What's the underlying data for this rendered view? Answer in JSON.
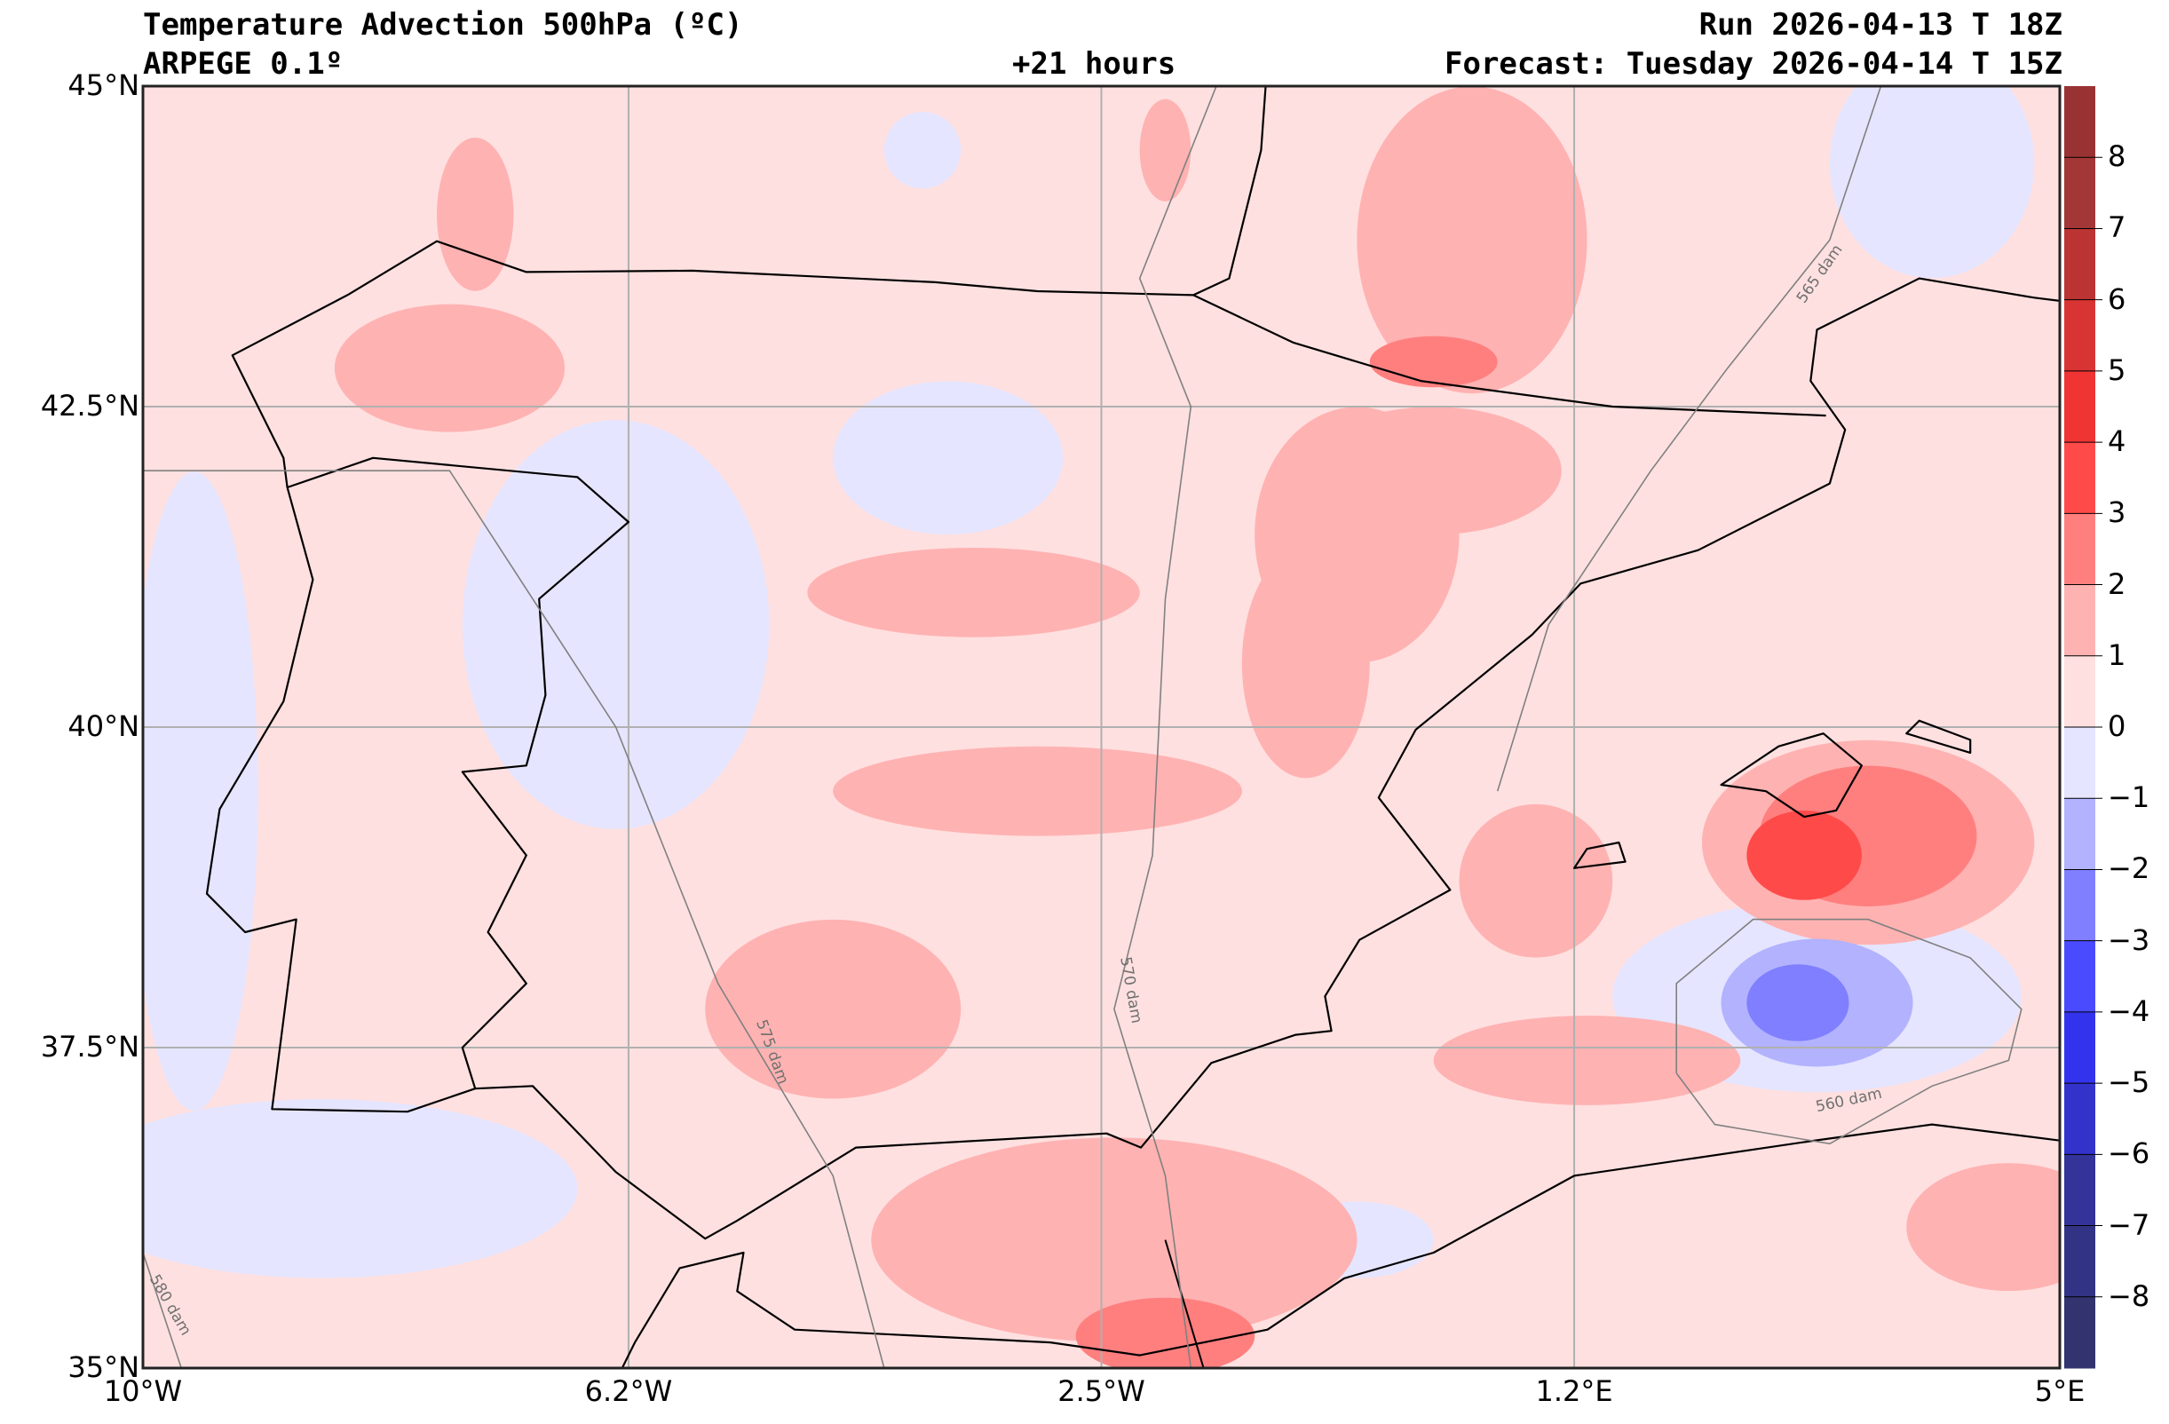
{
  "header": {
    "title": "Temperature Advection  500hPa (ºC)",
    "model": "ARPEGE 0.1º",
    "lead_time": "+21 hours",
    "run": "Run 2026-04-13 T 18Z",
    "forecast": "Forecast: Tuesday 2026-04-14 T 15Z"
  },
  "axes": {
    "lon_ticks": [
      "10°W",
      "6.2°W",
      "2.5°W",
      "1.2°E",
      "5°E"
    ],
    "lat_ticks": [
      "45°N",
      "42.5°N",
      "40°N",
      "37.5°N",
      "35°N"
    ],
    "lon_range": [
      -10,
      5
    ],
    "lat_range": [
      35,
      45
    ]
  },
  "colorbar": {
    "range": [
      -9,
      9
    ],
    "tick_labels": [
      "8",
      "7",
      "6",
      "5",
      "4",
      "3",
      "2",
      "1",
      "0",
      "−1",
      "−2",
      "−3",
      "−4",
      "−5",
      "−6",
      "−7",
      "−8"
    ],
    "colors": [
      "#993333",
      "#a33636",
      "#bb3333",
      "#d93434",
      "#f03333",
      "#ff4a4a",
      "#ff7f7f",
      "#ffb2b2",
      "#ffe0e0",
      "#e5e5ff",
      "#b2b2ff",
      "#7f7fff",
      "#4a4aff",
      "#3333ee",
      "#3333cc",
      "#333399",
      "#333385",
      "#333370"
    ]
  },
  "contour_labels": [
    "560 dam",
    "565 dam",
    "570 dam",
    "575 dam",
    "580 dam"
  ]
}
